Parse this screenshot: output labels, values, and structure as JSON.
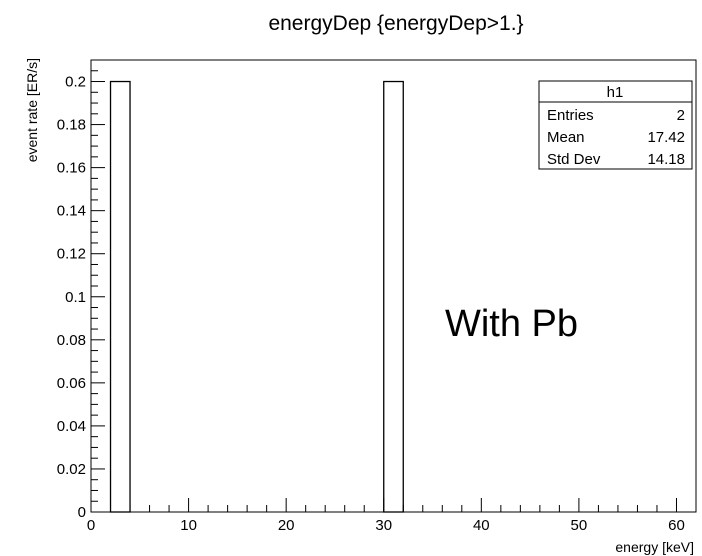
{
  "chart_data": {
    "type": "bar",
    "title": "energyDep {energyDep>1.}",
    "xlabel": "energy [keV]",
    "ylabel": "event rate [ER/s]",
    "xlim": [
      0,
      62
    ],
    "ylim": [
      0,
      0.21
    ],
    "bin_width": 2,
    "x_ticks": [
      0,
      10,
      20,
      30,
      40,
      50,
      60
    ],
    "y_ticks": [
      0,
      0.02,
      0.04,
      0.06,
      0.08,
      0.1,
      0.12,
      0.14,
      0.16,
      0.18,
      0.2
    ],
    "bars": [
      {
        "x_low": 2,
        "x_high": 4,
        "value": 0.2
      },
      {
        "x_low": 30,
        "x_high": 32,
        "value": 0.2
      }
    ],
    "grid": false,
    "stats_box": {
      "title": "h1",
      "rows": [
        {
          "label": "Entries",
          "value": "2"
        },
        {
          "label": "Mean",
          "value": "17.42"
        },
        {
          "label": "Std Dev",
          "value": "14.18"
        }
      ],
      "placement": "top-right"
    },
    "annotation": "With Pb"
  }
}
